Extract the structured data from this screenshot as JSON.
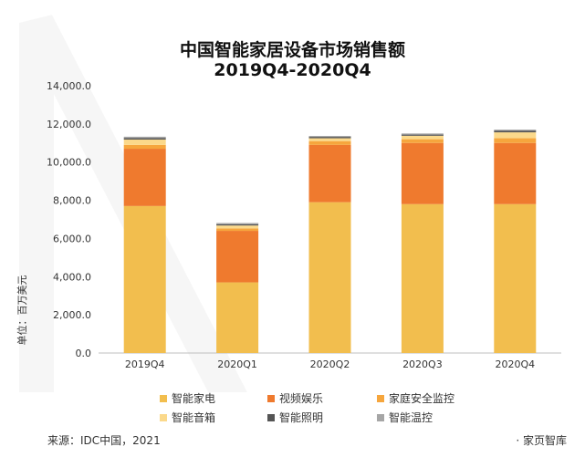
{
  "chart_data": {
    "type": "bar",
    "stacked": true,
    "title": "中国智能家居设备市场销售额",
    "subtitle": "2019Q4-2020Q4",
    "ylabel": "单位：百万美元",
    "xlabel": "",
    "ylim": [
      0,
      14000
    ],
    "yticks": [
      "0.0",
      "2,000.0",
      "4,000.0",
      "6,000.0",
      "8,000.0",
      "10,000.0",
      "12,000.0",
      "14,000.0"
    ],
    "categories": [
      "2019Q4",
      "2020Q1",
      "2020Q2",
      "2020Q3",
      "2020Q4"
    ],
    "series": [
      {
        "name": "智能家电",
        "color": "#F2BE4E",
        "values": [
          7700,
          3700,
          7900,
          7800,
          7800
        ]
      },
      {
        "name": "视频娱乐",
        "color": "#EF7A2E",
        "values": [
          3000,
          2700,
          3000,
          3200,
          3200
        ]
      },
      {
        "name": "家庭安全监控",
        "color": "#F6A63D",
        "values": [
          200,
          130,
          200,
          200,
          250
        ]
      },
      {
        "name": "智能音箱",
        "color": "#FBD98B",
        "values": [
          280,
          150,
          150,
          180,
          310
        ]
      },
      {
        "name": "智能照明",
        "color": "#555555",
        "values": [
          80,
          70,
          70,
          60,
          90
        ]
      },
      {
        "name": "智能温控",
        "color": "#A6A6A6",
        "values": [
          70,
          60,
          50,
          60,
          50
        ]
      }
    ],
    "legend_position": "bottom",
    "grid": false
  },
  "footer": {
    "source": "来源：IDC中国，2021",
    "brand": "· 家页智库"
  }
}
